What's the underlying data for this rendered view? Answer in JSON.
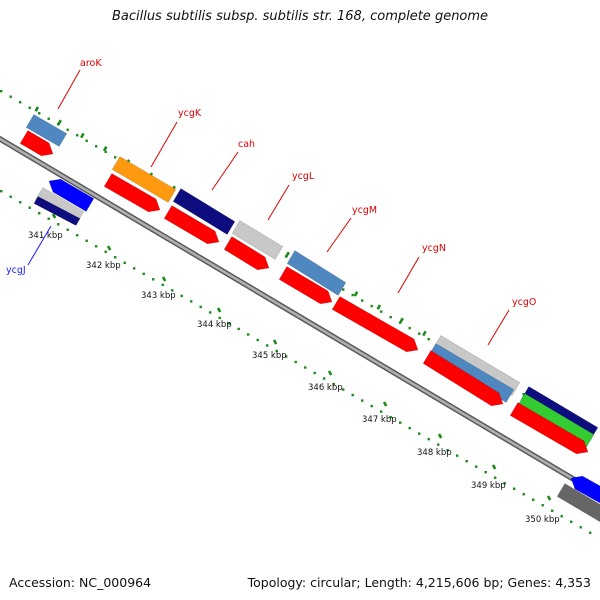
{
  "title": "Bacillus subtilis subsp. subtilis str. 168, complete genome",
  "footer": {
    "accession": "Accession: NC_000964",
    "summary": "Topology: circular; Length: 4,215,606 bp; Genes: 4,353"
  },
  "colors": {
    "backbone": "#8a8a8a",
    "label_red": "#dd0000",
    "label_blue": "#1a1aff",
    "tick_green": "#1a8c1a",
    "cds_red": "#ff0000",
    "steelblue": "#4f87c0",
    "navy": "#0d0d80",
    "orange": "#ff9910",
    "lightgray": "#c8c8c8",
    "green": "#33cc33",
    "blue": "#0000ff",
    "darkgray": "#666666"
  },
  "axis": {
    "unit": "kbp",
    "ticks": [
      {
        "label": "341 kbp"
      },
      {
        "label": "342 kbp"
      },
      {
        "label": "343 kbp"
      },
      {
        "label": "344 kbp"
      },
      {
        "label": "345 kbp"
      },
      {
        "label": "346 kbp"
      },
      {
        "label": "347 kbp"
      },
      {
        "label": "348 kbp"
      },
      {
        "label": "349 kbp"
      },
      {
        "label": "350 kbp"
      }
    ]
  },
  "gene_labels": [
    {
      "name": "aroK",
      "color": "label_red"
    },
    {
      "name": "ycgK",
      "color": "label_red"
    },
    {
      "name": "cah",
      "color": "label_red"
    },
    {
      "name": "ycgL",
      "color": "label_red"
    },
    {
      "name": "ycgM",
      "color": "label_red"
    },
    {
      "name": "ycgN",
      "color": "label_red"
    },
    {
      "name": "ycgO",
      "color": "label_red"
    },
    {
      "name": "ycgJ",
      "color": "label_blue"
    }
  ]
}
